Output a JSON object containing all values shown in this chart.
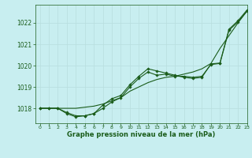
{
  "title": "Graphe pression niveau de la mer (hPa)",
  "bg_color": "#c8eef0",
  "grid_color": "#b8dede",
  "line_color": "#1a5c1a",
  "marker_color": "#1a5c1a",
  "xlim": [
    -0.5,
    23
  ],
  "ylim": [
    1017.3,
    1022.85
  ],
  "yticks": [
    1018,
    1019,
    1020,
    1021,
    1022
  ],
  "xticks": [
    0,
    1,
    2,
    3,
    4,
    5,
    6,
    7,
    8,
    9,
    10,
    11,
    12,
    13,
    14,
    15,
    16,
    17,
    18,
    19,
    20,
    21,
    22,
    23
  ],
  "series1": [
    1018.0,
    1018.0,
    1018.0,
    1018.0,
    1018.0,
    1018.05,
    1018.1,
    1018.2,
    1018.35,
    1018.5,
    1018.8,
    1019.0,
    1019.2,
    1019.35,
    1019.45,
    1019.5,
    1019.6,
    1019.7,
    1019.85,
    1020.1,
    1020.8,
    1021.4,
    1022.0,
    1022.55
  ],
  "series2": [
    1018.0,
    1018.0,
    1018.0,
    1017.75,
    1017.6,
    1017.65,
    1017.75,
    1018.0,
    1018.3,
    1018.5,
    1019.0,
    1019.4,
    1019.7,
    1019.55,
    1019.6,
    1019.5,
    1019.5,
    1019.45,
    1019.5,
    1020.05,
    1020.1,
    1021.65,
    1022.05,
    1022.55
  ],
  "series3": [
    1018.0,
    1018.0,
    1018.0,
    1017.8,
    1017.65,
    1017.65,
    1017.75,
    1018.15,
    1018.45,
    1018.6,
    1019.1,
    1019.5,
    1019.85,
    1019.75,
    1019.65,
    1019.55,
    1019.45,
    1019.4,
    1019.45,
    1020.08,
    1020.12,
    1021.7,
    1022.1,
    1022.6
  ],
  "figsize": [
    3.2,
    2.0
  ],
  "dpi": 100
}
